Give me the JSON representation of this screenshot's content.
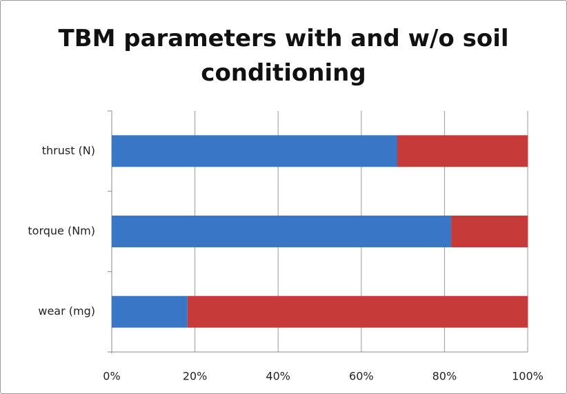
{
  "chart_data": {
    "type": "stacked_barh",
    "title": "TBM parameters with and w/o soil conditioning",
    "categories": [
      "thrust (N)",
      "torque (Nm)",
      "wear (mg)"
    ],
    "series": [
      {
        "color": "#3a76c6",
        "values": [
          68.5,
          81.6,
          18.2
        ]
      },
      {
        "color": "#c63a3a",
        "values": [
          31.5,
          18.4,
          81.8
        ]
      }
    ],
    "xlim": [
      0,
      100
    ],
    "xticks": [
      {
        "value": 0,
        "label": "0%"
      },
      {
        "value": 20,
        "label": "20%"
      },
      {
        "value": 40,
        "label": "40%"
      },
      {
        "value": 60,
        "label": "60%"
      },
      {
        "value": 80,
        "label": "80%"
      },
      {
        "value": 100,
        "label": "100%"
      }
    ],
    "grid": true
  }
}
